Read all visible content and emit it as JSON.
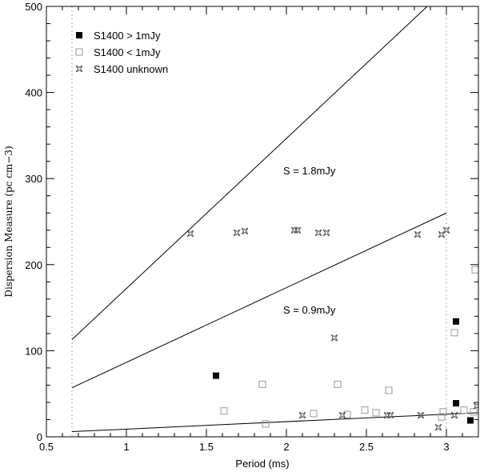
{
  "chart_data": {
    "type": "scatter",
    "xlabel": "Period (ms)",
    "ylabel": "Dispersion Measure (pc cm−3)",
    "xlim": [
      0.5,
      3.2
    ],
    "ylim": [
      0,
      500
    ],
    "x_ticks": [
      "0.5",
      "1",
      "1.5",
      "2",
      "2.5",
      "3"
    ],
    "y_ticks": [
      "0",
      "100",
      "200",
      "300",
      "400",
      "500"
    ],
    "legend_position": "top-left",
    "vertical_dotted_lines_x": [
      0.66,
      3.0
    ],
    "series": [
      {
        "name": "S1400 > 1mJy",
        "marker": "filled-square",
        "points": [
          [
            1.56,
            71
          ],
          [
            3.06,
            134
          ],
          [
            3.06,
            39
          ],
          [
            3.15,
            19
          ]
        ]
      },
      {
        "name": "S1400 < 1mJy",
        "marker": "open-square",
        "points": [
          [
            1.61,
            30
          ],
          [
            1.85,
            61
          ],
          [
            1.87,
            15
          ],
          [
            2.17,
            27
          ],
          [
            2.32,
            61
          ],
          [
            2.38,
            26
          ],
          [
            2.49,
            31
          ],
          [
            2.56,
            28
          ],
          [
            2.64,
            54
          ],
          [
            2.97,
            23
          ],
          [
            2.98,
            29
          ],
          [
            3.05,
            121
          ],
          [
            3.11,
            31
          ],
          [
            3.17,
            29
          ],
          [
            3.18,
            194
          ]
        ]
      },
      {
        "name": "S1400 unknown",
        "marker": "star",
        "points": [
          [
            1.4,
            236
          ],
          [
            1.69,
            237
          ],
          [
            1.74,
            239
          ],
          [
            2.05,
            240
          ],
          [
            2.07,
            240
          ],
          [
            2.2,
            237
          ],
          [
            2.25,
            237
          ],
          [
            2.82,
            235
          ],
          [
            2.97,
            235
          ],
          [
            3.0,
            240
          ],
          [
            2.3,
            115
          ],
          [
            2.1,
            25
          ],
          [
            2.35,
            25
          ],
          [
            2.63,
            25
          ],
          [
            2.65,
            25
          ],
          [
            2.84,
            25
          ],
          [
            3.05,
            25
          ],
          [
            2.95,
            11
          ],
          [
            3.19,
            36
          ]
        ]
      }
    ],
    "lines": [
      {
        "label": "S = 1.8mJy",
        "points": [
          [
            0.66,
            113
          ],
          [
            2.88,
            500
          ]
        ]
      },
      {
        "label": "S = 0.9mJy",
        "points": [
          [
            0.66,
            57
          ],
          [
            3.0,
            260
          ]
        ]
      },
      {
        "label": "",
        "points": [
          [
            0.66,
            6
          ],
          [
            3.2,
            28
          ]
        ]
      }
    ],
    "annotations": [
      {
        "text": "S = 1.8mJy",
        "x": 1.98,
        "y": 305
      },
      {
        "text": "S = 0.9mJy",
        "x": 1.98,
        "y": 143
      }
    ]
  },
  "colors": {
    "axis": "#000000",
    "lines": "#000000",
    "open_marker": "#999999",
    "dotted": "#aaaaaa"
  }
}
